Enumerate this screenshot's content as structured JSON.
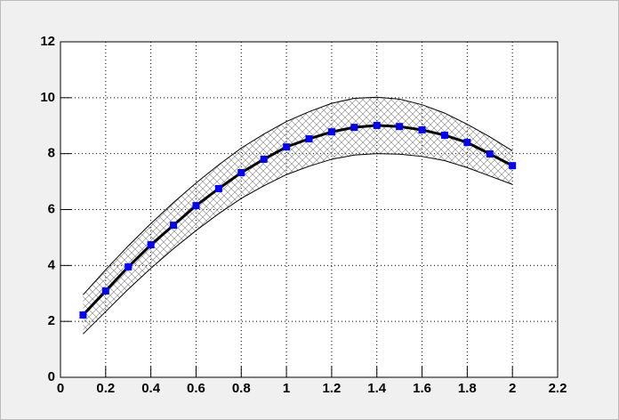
{
  "chart_data": {
    "type": "line",
    "x": [
      0.1,
      0.2,
      0.3,
      0.4,
      0.5,
      0.6,
      0.7,
      0.8,
      0.9,
      1.0,
      1.1,
      1.2,
      1.3,
      1.4,
      1.5,
      1.6,
      1.7,
      1.8,
      1.9,
      2.0
    ],
    "values": [
      2.23,
      3.09,
      3.95,
      4.74,
      5.44,
      6.14,
      6.75,
      7.32,
      7.8,
      8.24,
      8.53,
      8.78,
      8.94,
      9.01,
      8.97,
      8.85,
      8.66,
      8.4,
      7.99,
      7.57
    ],
    "band_upper": [
      2.95,
      3.85,
      4.7,
      5.5,
      6.25,
      6.95,
      7.6,
      8.2,
      8.7,
      9.15,
      9.5,
      9.8,
      9.98,
      10.02,
      9.95,
      9.75,
      9.45,
      9.05,
      8.6,
      8.1
    ],
    "band_lower": [
      1.55,
      2.35,
      3.15,
      3.9,
      4.6,
      5.25,
      5.85,
      6.4,
      6.85,
      7.25,
      7.55,
      7.8,
      7.95,
      8.0,
      7.98,
      7.9,
      7.75,
      7.5,
      7.2,
      6.9
    ],
    "line_color": "#000000",
    "marker_color": "#0000ff",
    "band_color": "#808080",
    "xlim": [
      0,
      2.2
    ],
    "ylim": [
      0,
      12
    ],
    "xticks": [
      0,
      0.2,
      0.4,
      0.6,
      0.8,
      1,
      1.2,
      1.4,
      1.6,
      1.8,
      2,
      2.2
    ],
    "yticks": [
      0,
      2,
      4,
      6,
      8,
      10,
      12
    ],
    "grid": true
  }
}
